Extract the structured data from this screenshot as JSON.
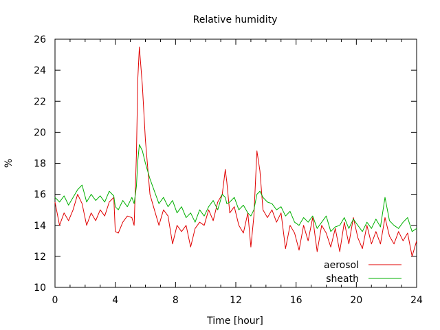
{
  "chart_data": {
    "type": "line",
    "title": "Relative humidity",
    "xlabel": "Time [hour]",
    "ylabel": "%",
    "xlim": [
      0,
      24
    ],
    "ylim": [
      10,
      26
    ],
    "xticks": [
      0,
      4,
      8,
      12,
      16,
      20,
      24
    ],
    "yticks": [
      10,
      12,
      14,
      16,
      18,
      20,
      22,
      24,
      26
    ],
    "grid": false,
    "legend_position": "bottom-right",
    "series": [
      {
        "name": "aerosol",
        "color": "#e00000",
        "x": [
          0,
          0.3,
          0.6,
          0.9,
          1.2,
          1.5,
          1.8,
          2.1,
          2.4,
          2.7,
          3.0,
          3.3,
          3.6,
          3.9,
          4.0,
          4.2,
          4.5,
          4.8,
          5.1,
          5.25,
          5.4,
          5.5,
          5.6,
          5.8,
          6.0,
          6.3,
          6.6,
          6.9,
          7.2,
          7.5,
          7.8,
          8.1,
          8.4,
          8.7,
          9.0,
          9.3,
          9.6,
          9.9,
          10.2,
          10.5,
          10.8,
          11.1,
          11.3,
          11.4,
          11.6,
          11.9,
          12.2,
          12.5,
          12.8,
          13.0,
          13.2,
          13.4,
          13.6,
          13.8,
          14.1,
          14.4,
          14.7,
          15.0,
          15.3,
          15.6,
          15.9,
          16.2,
          16.5,
          16.8,
          17.1,
          17.4,
          17.7,
          18.0,
          18.3,
          18.6,
          18.9,
          19.2,
          19.5,
          19.8,
          20.1,
          20.4,
          20.7,
          21.0,
          21.3,
          21.6,
          21.9,
          22.2,
          22.5,
          22.8,
          23.1,
          23.4,
          23.7,
          24.0
        ],
        "values": [
          15.5,
          14.0,
          14.8,
          14.3,
          15.0,
          16.0,
          15.4,
          14.0,
          14.8,
          14.3,
          15.0,
          14.6,
          15.5,
          15.8,
          13.6,
          13.5,
          14.2,
          14.6,
          14.5,
          14.0,
          18.5,
          23.5,
          25.5,
          23.0,
          19.5,
          16.0,
          15.0,
          14.0,
          15.0,
          14.6,
          12.8,
          14.0,
          13.6,
          14.0,
          12.6,
          13.8,
          14.2,
          14.0,
          15.0,
          14.3,
          15.5,
          16.0,
          17.6,
          16.8,
          14.8,
          15.2,
          14.0,
          13.5,
          14.8,
          12.6,
          14.6,
          18.8,
          17.5,
          15.0,
          14.5,
          15.0,
          14.2,
          14.8,
          12.5,
          14.0,
          13.5,
          12.4,
          14.0,
          13.0,
          14.5,
          12.3,
          14.0,
          13.5,
          12.6,
          13.8,
          12.3,
          14.2,
          12.8,
          14.5,
          13.2,
          12.5,
          14.0,
          12.8,
          13.6,
          12.8,
          14.5,
          13.3,
          12.8,
          13.6,
          13.0,
          13.5,
          12.0,
          13.0
        ]
      },
      {
        "name": "sheath",
        "color": "#00b000",
        "x": [
          0,
          0.3,
          0.6,
          0.9,
          1.2,
          1.5,
          1.8,
          2.1,
          2.4,
          2.7,
          3.0,
          3.3,
          3.6,
          3.9,
          4.0,
          4.2,
          4.5,
          4.8,
          5.1,
          5.25,
          5.4,
          5.5,
          5.6,
          5.8,
          6.0,
          6.3,
          6.6,
          6.9,
          7.2,
          7.5,
          7.8,
          8.1,
          8.4,
          8.7,
          9.0,
          9.3,
          9.6,
          9.9,
          10.2,
          10.5,
          10.8,
          11.1,
          11.3,
          11.4,
          11.6,
          11.9,
          12.2,
          12.5,
          12.8,
          13.0,
          13.2,
          13.4,
          13.6,
          13.8,
          14.1,
          14.4,
          14.7,
          15.0,
          15.3,
          15.6,
          15.9,
          16.2,
          16.5,
          16.8,
          17.1,
          17.4,
          17.7,
          18.0,
          18.3,
          18.6,
          18.9,
          19.2,
          19.5,
          19.8,
          20.1,
          20.4,
          20.7,
          21.0,
          21.3,
          21.6,
          21.9,
          22.2,
          22.5,
          22.8,
          23.1,
          23.4,
          23.7,
          24.0
        ],
        "values": [
          15.8,
          15.5,
          15.9,
          15.3,
          15.8,
          16.3,
          16.6,
          15.5,
          16.0,
          15.6,
          15.9,
          15.5,
          16.2,
          15.9,
          15.2,
          15.0,
          15.6,
          15.2,
          15.8,
          15.4,
          16.5,
          18.2,
          19.2,
          18.8,
          18.0,
          17.0,
          16.2,
          15.4,
          15.8,
          15.2,
          15.6,
          14.8,
          15.2,
          14.5,
          14.8,
          14.2,
          15.0,
          14.6,
          15.2,
          15.6,
          15.0,
          16.0,
          15.8,
          15.4,
          15.5,
          15.8,
          15.0,
          15.3,
          14.8,
          14.6,
          15.0,
          16.0,
          16.2,
          15.8,
          15.5,
          15.4,
          15.0,
          15.2,
          14.6,
          14.9,
          14.2,
          14.0,
          14.5,
          14.2,
          14.6,
          13.8,
          14.2,
          14.6,
          13.6,
          13.9,
          14.0,
          14.5,
          13.8,
          14.4,
          14.0,
          13.6,
          14.2,
          13.8,
          14.4,
          13.9,
          15.8,
          14.3,
          14.0,
          13.8,
          14.2,
          14.5,
          13.6,
          13.8
        ]
      }
    ]
  }
}
